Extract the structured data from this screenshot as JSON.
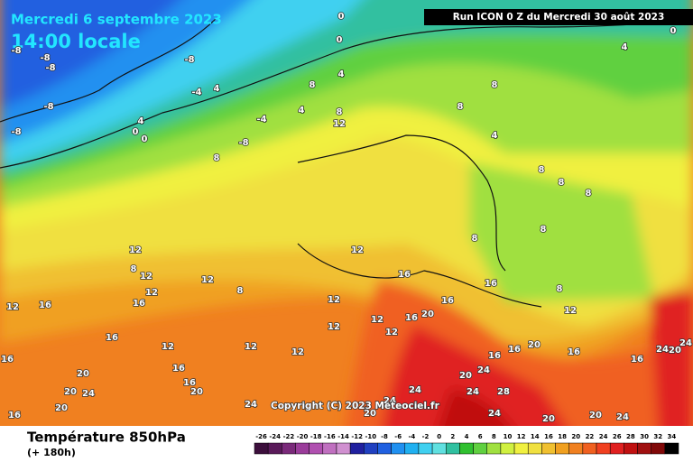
{
  "header": {
    "date": "Mercredi 6 septembre 2023",
    "time": "14:00 locale",
    "run": "Run ICON 0 Z du Mercredi 30 août 2023"
  },
  "copyright": "Copyright (C) 2023 Meteociel.fr",
  "footer": {
    "title": "Température 850hPa",
    "lead": "(+ 180h)"
  },
  "legend": {
    "labels": [
      -26,
      -24,
      -22,
      -20,
      -18,
      -16,
      -14,
      -12,
      -10,
      -8,
      -6,
      -4,
      -2,
      0,
      2,
      4,
      6,
      8,
      10,
      12,
      14,
      16,
      18,
      20,
      22,
      24,
      26,
      28,
      30,
      32,
      34
    ]
  },
  "contour_labels": [
    0,
    0,
    0,
    4,
    -8,
    -8,
    -8,
    -8,
    -4,
    4,
    4,
    8,
    8,
    8,
    8,
    12,
    -4,
    4,
    4,
    0,
    0,
    -8,
    -8,
    -8,
    8,
    4,
    8,
    8,
    8,
    8,
    8,
    12,
    12,
    8,
    12,
    12,
    8,
    12,
    16,
    12,
    16,
    16,
    16,
    16,
    8,
    12,
    12,
    16,
    20,
    12,
    12,
    16,
    12,
    12,
    12,
    12,
    16,
    16,
    20,
    16,
    16,
    24,
    20,
    24,
    16,
    20,
    16,
    16,
    20,
    20,
    24,
    20,
    16,
    24,
    24,
    20,
    24,
    24,
    28,
    24,
    20,
    20,
    24,
    24,
    20
  ]
}
